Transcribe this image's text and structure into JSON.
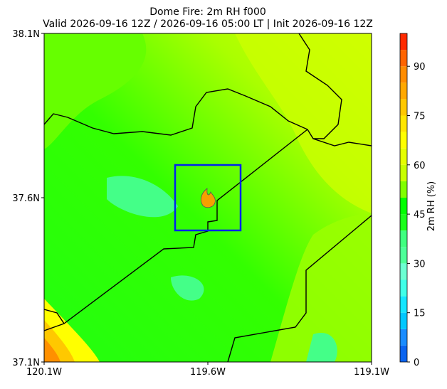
{
  "chart_data": {
    "type": "filled-contour-map",
    "title": "Dome Fire: 2m RH f000",
    "subtitle": "Valid 2026-09-16 12Z / 2026-09-16 05:00 LT | Init 2026-09-16 12Z",
    "xlim": [
      -120.1,
      -119.1
    ],
    "xticks": [
      {
        "value": -120.1,
        "label": "120.1W"
      },
      {
        "value": -119.6,
        "label": "119.6W"
      },
      {
        "value": -119.1,
        "label": "119.1W"
      }
    ],
    "ylim": [
      37.1,
      38.1
    ],
    "yticks": [
      {
        "value": 37.1,
        "label": "37.1N"
      },
      {
        "value": 37.6,
        "label": "37.6N"
      },
      {
        "value": 38.1,
        "label": "38.1N"
      }
    ],
    "colorbar": {
      "label": "2m RH (%)",
      "lim": [
        0,
        100
      ],
      "ticks": [
        0,
        15,
        30,
        45,
        60,
        75,
        90
      ],
      "levels": [
        0,
        5,
        10,
        15,
        20,
        25,
        30,
        35,
        40,
        45,
        50,
        55,
        60,
        65,
        70,
        75,
        80,
        85,
        90,
        95,
        100
      ],
      "colors": [
        "#0a64f0",
        "#1a8cff",
        "#00c8ff",
        "#14e6ff",
        "#40ffe8",
        "#6cffd2",
        "#4dff99",
        "#40ff80",
        "#1aff1a",
        "#00ff00",
        "#80ff00",
        "#c8ff00",
        "#e6ff00",
        "#ffff00",
        "#ffe600",
        "#ffc800",
        "#ffa800",
        "#ff8c00",
        "#ff6400",
        "#ff2a00"
      ]
    }
  }
}
